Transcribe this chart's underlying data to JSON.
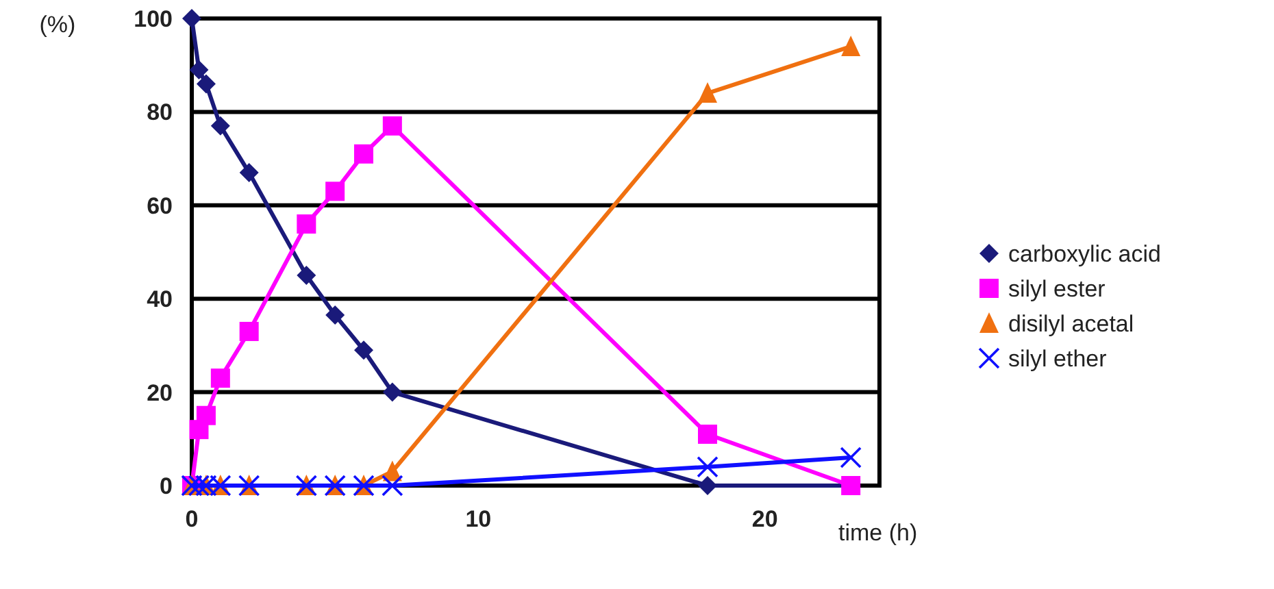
{
  "chart_data": {
    "type": "line",
    "ylabel": "(%)",
    "xlabel": "time (h)",
    "xlim": [
      0,
      24
    ],
    "xticks": [
      0,
      10,
      20
    ],
    "ylim": [
      0,
      100
    ],
    "yticks": [
      0,
      20,
      40,
      60,
      80,
      100
    ],
    "grid": "y",
    "legend": "right",
    "series": [
      {
        "name": "carboxylic acid",
        "color": "#1a1a7a",
        "marker": "diamond",
        "x": [
          0,
          0.25,
          0.5,
          1,
          2,
          4,
          5,
          6,
          7,
          18,
          23
        ],
        "values": [
          100,
          89,
          86,
          77,
          67,
          45,
          36.5,
          29,
          20,
          0,
          0
        ]
      },
      {
        "name": "silyl ester",
        "color": "#ff00ff",
        "marker": "square",
        "x": [
          0,
          0.25,
          0.5,
          1,
          2,
          4,
          5,
          6,
          7,
          18,
          23
        ],
        "values": [
          0,
          12,
          15,
          23,
          33,
          56,
          63,
          71,
          77,
          11,
          0
        ]
      },
      {
        "name": "disilyl acetal",
        "color": "#f07010",
        "marker": "triangle",
        "x": [
          0,
          0.5,
          1,
          2,
          4,
          5,
          6,
          7,
          18,
          23
        ],
        "values": [
          0,
          0,
          0,
          0,
          0,
          0,
          0,
          3,
          84,
          94
        ]
      },
      {
        "name": "silyl ether",
        "color": "#1010ff",
        "marker": "cross",
        "x": [
          0,
          0.25,
          0.5,
          1,
          2,
          4,
          5,
          6,
          7,
          18,
          23
        ],
        "values": [
          0,
          0,
          0,
          0,
          0,
          0,
          0,
          0,
          0,
          4,
          6
        ]
      }
    ]
  }
}
